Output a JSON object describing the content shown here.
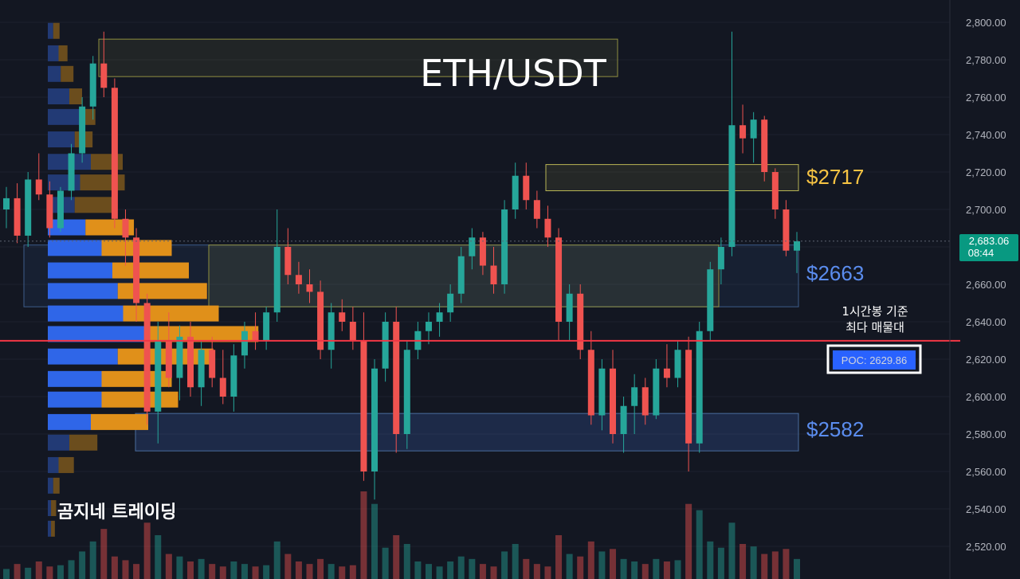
{
  "chart_data": {
    "type": "candlestick",
    "title": "ETH/USDT",
    "watermark": "곰지네 트레이딩",
    "y_axis": {
      "ticks": [
        "2,800.00",
        "2,780.00",
        "2,760.00",
        "2,740.00",
        "2,720.00",
        "2,700.00",
        "2,680.00",
        "2,660.00",
        "2,640.00",
        "2,620.00",
        "2,600.00",
        "2,580.00",
        "2,560.00",
        "2,540.00",
        "2,520.00"
      ],
      "range": [
        2512,
        2802
      ]
    },
    "current_price": {
      "value": "2,683.06",
      "countdown": "08:44",
      "price": 2683.06
    },
    "poc": {
      "label": "POC: 2629.86",
      "price": 2629.86,
      "note_line1": "1시간봉 기준",
      "note_line2": "최다 매물대"
    },
    "zones": [
      {
        "name": "resistance-2717",
        "label": "$2717",
        "top": 2724,
        "bottom": 2710,
        "color": "#f6c343"
      },
      {
        "name": "zone-2663",
        "label": "$2663",
        "top": 2681,
        "bottom": 2648,
        "color": "#4f86f7"
      },
      {
        "name": "support-2582",
        "label": "$2582",
        "top": 2591,
        "bottom": 2571,
        "color": "#4f86f7"
      },
      {
        "name": "top-box",
        "label": "",
        "top": 2791,
        "bottom": 2771,
        "color": "#c8c85a"
      }
    ],
    "volume_profile": [
      {
        "price": 2795,
        "up": 5,
        "down": 5
      },
      {
        "price": 2783,
        "up": 10,
        "down": 7
      },
      {
        "price": 2772,
        "up": 12,
        "down": 10
      },
      {
        "price": 2760,
        "up": 20,
        "down": 10
      },
      {
        "price": 2749,
        "up": 30,
        "down": 12
      },
      {
        "price": 2737,
        "up": 25,
        "down": 14
      },
      {
        "price": 2725,
        "up": 40,
        "down": 25
      },
      {
        "price": 2714,
        "up": 30,
        "down": 35
      },
      {
        "price": 2702,
        "up": 25,
        "down": 30
      },
      {
        "price": 2690,
        "up": 35,
        "down": 38
      },
      {
        "price": 2679,
        "up": 50,
        "down": 55
      },
      {
        "price": 2667,
        "up": 60,
        "down": 60
      },
      {
        "price": 2656,
        "up": 65,
        "down": 70
      },
      {
        "price": 2644,
        "up": 70,
        "down": 75
      },
      {
        "price": 2633,
        "up": 95,
        "down": 85
      },
      {
        "price": 2621,
        "up": 65,
        "down": 75
      },
      {
        "price": 2609,
        "up": 50,
        "down": 55
      },
      {
        "price": 2598,
        "up": 50,
        "down": 60
      },
      {
        "price": 2586,
        "up": 40,
        "down": 45
      },
      {
        "price": 2575,
        "up": 20,
        "down": 22
      },
      {
        "price": 2563,
        "up": 10,
        "down": 12
      },
      {
        "price": 2552,
        "up": 5,
        "down": 5
      },
      {
        "price": 2540,
        "up": 3,
        "down": 4
      },
      {
        "price": 2529,
        "up": 3,
        "down": 3
      }
    ],
    "candles": [
      {
        "o": 2700,
        "h": 2712,
        "l": 2690,
        "c": 2706
      },
      {
        "o": 2706,
        "h": 2714,
        "l": 2682,
        "c": 2686
      },
      {
        "o": 2686,
        "h": 2720,
        "l": 2680,
        "c": 2716
      },
      {
        "o": 2716,
        "h": 2730,
        "l": 2705,
        "c": 2708
      },
      {
        "o": 2708,
        "h": 2715,
        "l": 2685,
        "c": 2690
      },
      {
        "o": 2690,
        "h": 2712,
        "l": 2688,
        "c": 2710
      },
      {
        "o": 2710,
        "h": 2735,
        "l": 2705,
        "c": 2730
      },
      {
        "o": 2730,
        "h": 2760,
        "l": 2725,
        "c": 2755
      },
      {
        "o": 2755,
        "h": 2782,
        "l": 2748,
        "c": 2778
      },
      {
        "o": 2778,
        "h": 2795,
        "l": 2760,
        "c": 2765
      },
      {
        "o": 2765,
        "h": 2770,
        "l": 2690,
        "c": 2695
      },
      {
        "o": 2695,
        "h": 2700,
        "l": 2670,
        "c": 2685
      },
      {
        "o": 2685,
        "h": 2690,
        "l": 2640,
        "c": 2650
      },
      {
        "o": 2650,
        "h": 2655,
        "l": 2585,
        "c": 2592
      },
      {
        "o": 2592,
        "h": 2640,
        "l": 2575,
        "c": 2630
      },
      {
        "o": 2630,
        "h": 2645,
        "l": 2605,
        "c": 2610
      },
      {
        "o": 2610,
        "h": 2638,
        "l": 2598,
        "c": 2632
      },
      {
        "o": 2632,
        "h": 2640,
        "l": 2600,
        "c": 2605
      },
      {
        "o": 2605,
        "h": 2630,
        "l": 2595,
        "c": 2625
      },
      {
        "o": 2625,
        "h": 2632,
        "l": 2605,
        "c": 2610
      },
      {
        "o": 2610,
        "h": 2625,
        "l": 2596,
        "c": 2600
      },
      {
        "o": 2600,
        "h": 2628,
        "l": 2592,
        "c": 2622
      },
      {
        "o": 2622,
        "h": 2640,
        "l": 2615,
        "c": 2635
      },
      {
        "o": 2635,
        "h": 2645,
        "l": 2625,
        "c": 2630
      },
      {
        "o": 2630,
        "h": 2648,
        "l": 2625,
        "c": 2645
      },
      {
        "o": 2645,
        "h": 2700,
        "l": 2640,
        "c": 2680
      },
      {
        "o": 2680,
        "h": 2690,
        "l": 2660,
        "c": 2665
      },
      {
        "o": 2665,
        "h": 2672,
        "l": 2655,
        "c": 2660
      },
      {
        "o": 2660,
        "h": 2668,
        "l": 2650,
        "c": 2656
      },
      {
        "o": 2656,
        "h": 2662,
        "l": 2620,
        "c": 2625
      },
      {
        "o": 2625,
        "h": 2650,
        "l": 2615,
        "c": 2645
      },
      {
        "o": 2645,
        "h": 2652,
        "l": 2635,
        "c": 2640
      },
      {
        "o": 2640,
        "h": 2648,
        "l": 2625,
        "c": 2630
      },
      {
        "o": 2630,
        "h": 2645,
        "l": 2555,
        "c": 2560
      },
      {
        "o": 2560,
        "h": 2620,
        "l": 2545,
        "c": 2615
      },
      {
        "o": 2615,
        "h": 2645,
        "l": 2608,
        "c": 2640
      },
      {
        "o": 2640,
        "h": 2648,
        "l": 2570,
        "c": 2580
      },
      {
        "o": 2580,
        "h": 2630,
        "l": 2572,
        "c": 2625
      },
      {
        "o": 2625,
        "h": 2640,
        "l": 2620,
        "c": 2635
      },
      {
        "o": 2635,
        "h": 2645,
        "l": 2628,
        "c": 2640
      },
      {
        "o": 2640,
        "h": 2650,
        "l": 2632,
        "c": 2645
      },
      {
        "o": 2645,
        "h": 2660,
        "l": 2640,
        "c": 2655
      },
      {
        "o": 2655,
        "h": 2680,
        "l": 2650,
        "c": 2675
      },
      {
        "o": 2675,
        "h": 2690,
        "l": 2668,
        "c": 2685
      },
      {
        "o": 2685,
        "h": 2688,
        "l": 2665,
        "c": 2670
      },
      {
        "o": 2670,
        "h": 2680,
        "l": 2655,
        "c": 2660
      },
      {
        "o": 2660,
        "h": 2705,
        "l": 2655,
        "c": 2700
      },
      {
        "o": 2700,
        "h": 2725,
        "l": 2695,
        "c": 2718
      },
      {
        "o": 2718,
        "h": 2725,
        "l": 2700,
        "c": 2705
      },
      {
        "o": 2705,
        "h": 2710,
        "l": 2690,
        "c": 2695
      },
      {
        "o": 2695,
        "h": 2702,
        "l": 2680,
        "c": 2685
      },
      {
        "o": 2685,
        "h": 2690,
        "l": 2630,
        "c": 2640
      },
      {
        "o": 2640,
        "h": 2660,
        "l": 2630,
        "c": 2655
      },
      {
        "o": 2655,
        "h": 2660,
        "l": 2620,
        "c": 2625
      },
      {
        "o": 2625,
        "h": 2635,
        "l": 2585,
        "c": 2590
      },
      {
        "o": 2590,
        "h": 2620,
        "l": 2582,
        "c": 2615
      },
      {
        "o": 2615,
        "h": 2625,
        "l": 2575,
        "c": 2580
      },
      {
        "o": 2580,
        "h": 2600,
        "l": 2570,
        "c": 2595
      },
      {
        "o": 2595,
        "h": 2612,
        "l": 2580,
        "c": 2605
      },
      {
        "o": 2605,
        "h": 2610,
        "l": 2585,
        "c": 2590
      },
      {
        "o": 2590,
        "h": 2620,
        "l": 2588,
        "c": 2615
      },
      {
        "o": 2615,
        "h": 2628,
        "l": 2605,
        "c": 2610
      },
      {
        "o": 2610,
        "h": 2630,
        "l": 2605,
        "c": 2625
      },
      {
        "o": 2625,
        "h": 2632,
        "l": 2560,
        "c": 2575
      },
      {
        "o": 2575,
        "h": 2640,
        "l": 2570,
        "c": 2635
      },
      {
        "o": 2635,
        "h": 2672,
        "l": 2630,
        "c": 2668
      },
      {
        "o": 2668,
        "h": 2685,
        "l": 2660,
        "c": 2680
      },
      {
        "o": 2680,
        "h": 2795,
        "l": 2675,
        "c": 2745
      },
      {
        "o": 2745,
        "h": 2756,
        "l": 2730,
        "c": 2738
      },
      {
        "o": 2738,
        "h": 2752,
        "l": 2725,
        "c": 2748
      },
      {
        "o": 2748,
        "h": 2750,
        "l": 2715,
        "c": 2720
      },
      {
        "o": 2720,
        "h": 2722,
        "l": 2695,
        "c": 2700
      },
      {
        "o": 2700,
        "h": 2705,
        "l": 2675,
        "c": 2678
      },
      {
        "o": 2678,
        "h": 2688,
        "l": 2666,
        "c": 2683
      }
    ],
    "volume": [
      8,
      12,
      9,
      14,
      10,
      11,
      15,
      22,
      30,
      40,
      18,
      15,
      12,
      45,
      35,
      20,
      18,
      14,
      16,
      12,
      10,
      14,
      12,
      10,
      11,
      30,
      20,
      14,
      12,
      16,
      12,
      10,
      11,
      70,
      60,
      25,
      35,
      28,
      14,
      12,
      10,
      14,
      18,
      16,
      12,
      10,
      22,
      28,
      16,
      12,
      10,
      35,
      20,
      18,
      30,
      22,
      24,
      16,
      14,
      12,
      16,
      14,
      15,
      60,
      55,
      30,
      25,
      45,
      28,
      26,
      20,
      22,
      24,
      16
    ]
  }
}
